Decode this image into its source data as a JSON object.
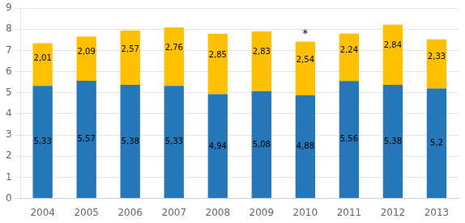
{
  "chart_data": {
    "type": "bar",
    "stacked": true,
    "categories": [
      "2004",
      "2005",
      "2006",
      "2007",
      "2008",
      "2009",
      "2010",
      "2011",
      "2012",
      "2013"
    ],
    "series": [
      {
        "color": "#2577B9",
        "values": [
          5.33,
          5.57,
          5.38,
          5.33,
          4.94,
          5.08,
          4.88,
          5.56,
          5.38,
          5.2
        ],
        "value_labels": [
          "5,33",
          "5,57",
          "5,38",
          "5,33",
          "4,94",
          "5,08",
          "4,88",
          "5,56",
          "5,38",
          "5,2"
        ]
      },
      {
        "color": "#FFC000",
        "values": [
          2.01,
          2.09,
          2.57,
          2.76,
          2.85,
          2.83,
          2.54,
          2.24,
          2.84,
          2.33
        ],
        "value_labels": [
          "2,01",
          "2,09",
          "2,57",
          "2,76",
          "2,85",
          "2,83",
          "2,54",
          "2,24",
          "2,84",
          "2,33"
        ]
      }
    ],
    "data_labels": true,
    "annotations": [
      {
        "text": "*",
        "x": "2010"
      }
    ],
    "ylim": [
      0,
      9
    ],
    "yticks": [
      0,
      1,
      2,
      3,
      4,
      5,
      6,
      7,
      8,
      9
    ],
    "grid": true
  }
}
